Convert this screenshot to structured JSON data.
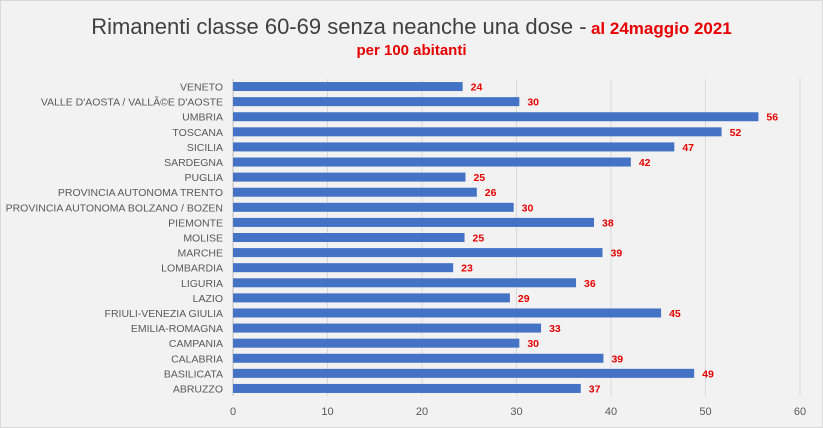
{
  "chart_data": {
    "type": "bar",
    "orientation": "horizontal",
    "title": "Rimanenti classe 60-69  senza neanche una dose -",
    "title_date": "al 24maggio 2021",
    "subtitle": "per 100 abitanti",
    "categories": [
      "VENETO",
      "VALLE D'AOSTA / VALLÃ©E D'AOSTE",
      "UMBRIA",
      "TOSCANA",
      "SICILIA",
      "SARDEGNA",
      "PUGLIA",
      "PROVINCIA AUTONOMA TRENTO",
      "PROVINCIA AUTONOMA BOLZANO / BOZEN",
      "PIEMONTE",
      "MOLISE",
      "MARCHE",
      "LOMBARDIA",
      "LIGURIA",
      "LAZIO",
      "FRIULI-VENEZIA GIULIA",
      "EMILIA-ROMAGNA",
      "CAMPANIA",
      "CALABRIA",
      "BASILICATA",
      "ABRUZZO"
    ],
    "values": [
      24.3,
      30.3,
      55.6,
      51.7,
      46.7,
      42.1,
      24.6,
      25.8,
      29.7,
      38.2,
      24.5,
      39.1,
      23.3,
      36.3,
      29.3,
      45.3,
      32.6,
      30.3,
      39.2,
      48.8,
      36.8
    ],
    "data_labels": [
      "24",
      "30",
      "56",
      "52",
      "47",
      "42",
      "25",
      "26",
      "30",
      "38",
      "25",
      "39",
      "23",
      "36",
      "29",
      "45",
      "33",
      "30",
      "39",
      "49",
      "37"
    ],
    "xlim": [
      0,
      60
    ],
    "xticks": [
      "0",
      "10",
      "20",
      "30",
      "40",
      "50",
      "60"
    ],
    "grid": true,
    "colors": {
      "bar": "#4472c4",
      "label": "#e60000",
      "grid": "#d9d9d9",
      "axis_text": "#595959"
    }
  }
}
